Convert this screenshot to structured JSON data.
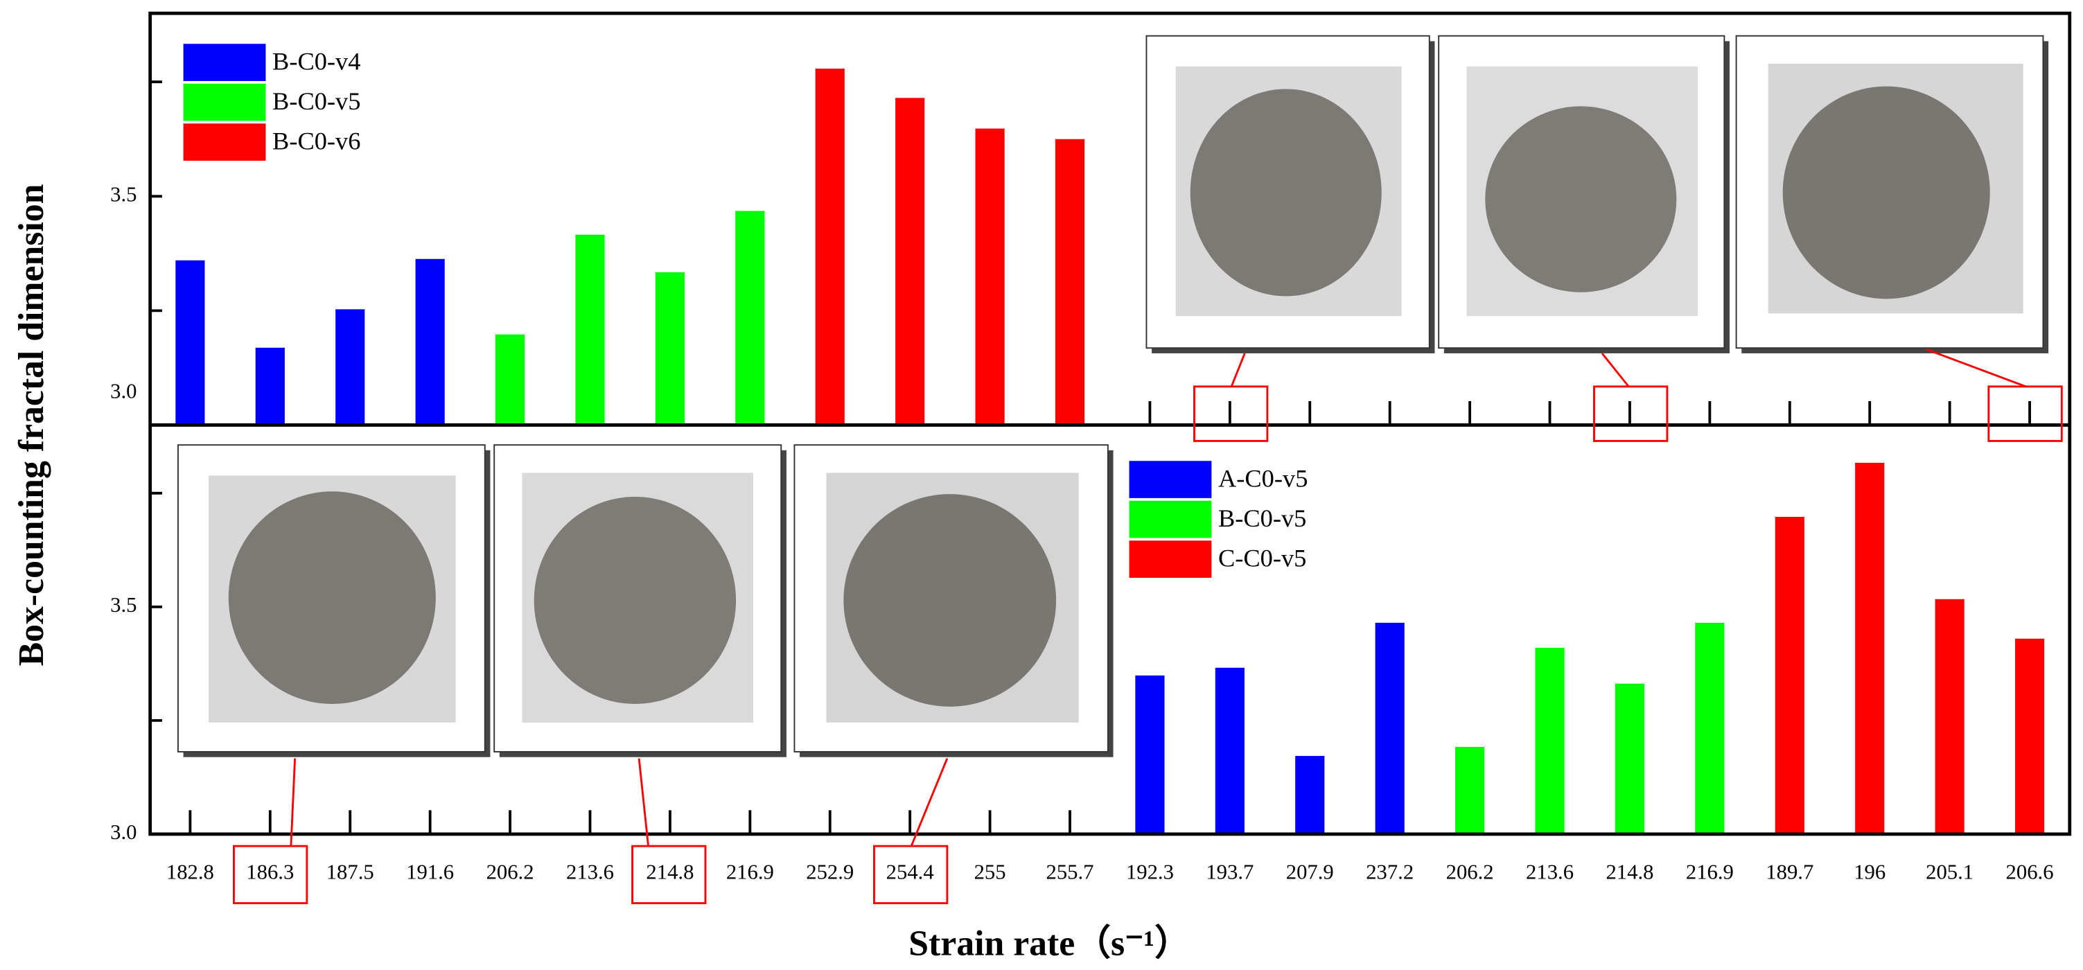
{
  "chart_data": [
    {
      "type": "bar",
      "ylabel": "Box-counting fractal dimension",
      "categories": [
        "182.8",
        "186.3",
        "187.5",
        "191.6",
        "206.2",
        "213.6",
        "214.8",
        "216.9",
        "252.9",
        "254.4",
        "255",
        "255.7"
      ],
      "series": [
        {
          "name": "B-C0-v4",
          "color": "#0000ff",
          "values": [
            3.36,
            3.169,
            3.253,
            3.363,
            null,
            null,
            null,
            null,
            null,
            null,
            null,
            null
          ]
        },
        {
          "name": "B-C0-v5",
          "color": "#00ff00",
          "values": [
            null,
            null,
            null,
            null,
            3.198,
            3.416,
            3.334,
            3.468,
            null,
            null,
            null,
            null
          ]
        },
        {
          "name": "B-C0-v6",
          "color": "#ff0000",
          "values": [
            null,
            null,
            null,
            null,
            null,
            null,
            null,
            null,
            3.779,
            3.715,
            3.648,
            3.625
          ]
        }
      ],
      "ylim": [
        3.0,
        3.9
      ],
      "yticks": [
        {
          "value": 3,
          "label": "3.0"
        },
        3.5
      ],
      "minor_yticks": [
        3.25,
        3.75
      ],
      "legend": "upper left"
    },
    {
      "type": "bar",
      "xlabel": "Strain rate（s⁻¹）",
      "categories": [
        "192.3",
        "193.7",
        "207.9",
        "237.2",
        "206.2",
        "213.6",
        "214.8",
        "216.9",
        "189.7",
        "196",
        "205.1",
        "206.6"
      ],
      "series": [
        {
          "name": "A-C0-v5",
          "color": "#0000ff",
          "values": [
            3.349,
            3.366,
            3.172,
            3.465,
            null,
            null,
            null,
            null,
            null,
            null,
            null,
            null
          ]
        },
        {
          "name": "B-C0-v5",
          "color": "#00ff00",
          "values": [
            null,
            null,
            null,
            null,
            3.192,
            3.41,
            3.331,
            3.465,
            null,
            null,
            null,
            null
          ]
        },
        {
          "name": "C-C0-v5",
          "color": "#ff0000",
          "values": [
            null,
            null,
            null,
            null,
            null,
            null,
            null,
            null,
            3.698,
            3.817,
            3.517,
            3.43
          ]
        }
      ],
      "ylim": [
        3.0,
        3.9
      ],
      "yticks": [
        {
          "value": 3,
          "label": "3.0"
        },
        3.5
      ],
      "minor_yticks": [
        3.25,
        3.75
      ],
      "legend": "upper center"
    }
  ]
}
